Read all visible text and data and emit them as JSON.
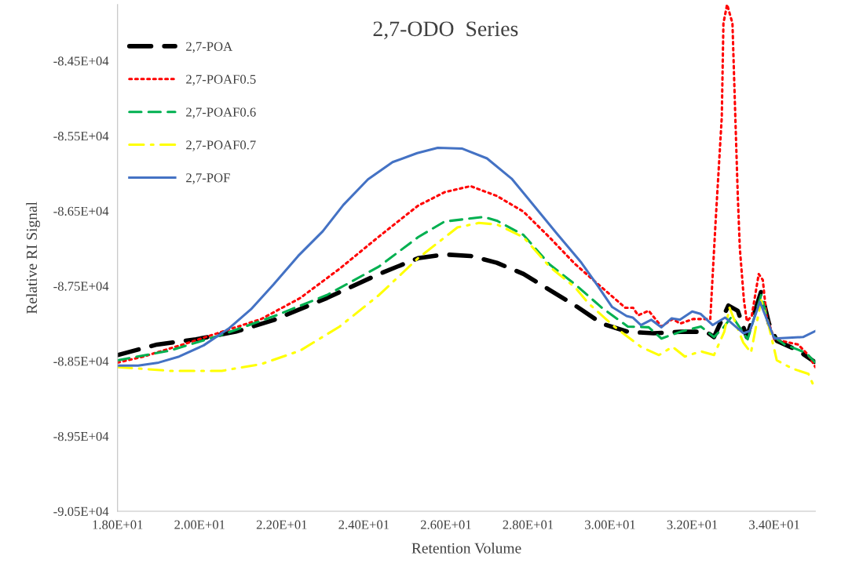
{
  "chart_data": {
    "type": "line",
    "title": "2,7-ODO  Series",
    "xlabel": "Retention Volume",
    "ylabel": "Relative RI Signal",
    "xlim": [
      18,
      35
    ],
    "ylim": [
      -90500,
      -83750
    ],
    "xticks": [
      {
        "value": 18,
        "label": "1.80E+01"
      },
      {
        "value": 20,
        "label": "2.00E+01"
      },
      {
        "value": 22,
        "label": "2.20E+01"
      },
      {
        "value": 24,
        "label": "2.40E+01"
      },
      {
        "value": 26,
        "label": "2.60E+01"
      },
      {
        "value": 28,
        "label": "2.80E+01"
      },
      {
        "value": 30,
        "label": "3.00E+01"
      },
      {
        "value": 32,
        "label": "3.20E+01"
      },
      {
        "value": 34,
        "label": "3.40E+01"
      }
    ],
    "yticks": [
      {
        "value": -84500,
        "label": "-8.45E+04"
      },
      {
        "value": -85500,
        "label": "-8.55E+04"
      },
      {
        "value": -86500,
        "label": "-8.65E+04"
      },
      {
        "value": -87500,
        "label": "-8.75E+04"
      },
      {
        "value": -88500,
        "label": "-8.85E+04"
      },
      {
        "value": -89500,
        "label": "-8.95E+04"
      },
      {
        "value": -90500,
        "label": "-9.05E+04"
      }
    ],
    "grid": false,
    "legend": "top left",
    "marker": "none",
    "series": [
      {
        "name": "2,7-POA",
        "color": "#000000",
        "line_style": "dashed",
        "x": [
          18.0,
          18.96,
          19.91,
          20.87,
          21.82,
          23.1,
          24.37,
          25.32,
          25.97,
          26.6,
          27.24,
          27.89,
          28.52,
          29.15,
          29.8,
          30.43,
          31.06,
          31.71,
          32.34,
          32.53,
          32.88,
          33.11,
          33.33,
          33.68,
          33.87,
          34.06,
          34.58,
          34.98
        ],
        "values": [
          -88420,
          -88280,
          -88210,
          -88110,
          -87950,
          -87660,
          -87340,
          -87130,
          -87080,
          -87100,
          -87190,
          -87340,
          -87550,
          -87760,
          -88000,
          -88110,
          -88130,
          -88110,
          -88110,
          -88180,
          -87760,
          -87830,
          -88180,
          -87570,
          -88000,
          -88230,
          -88360,
          -88510
        ]
      },
      {
        "name": "2,7-POAF0.5",
        "color": "#ff0000",
        "line_style": "dotted",
        "x": [
          18.0,
          18.63,
          19.59,
          20.54,
          21.5,
          22.45,
          23.41,
          24.37,
          25.32,
          25.97,
          26.6,
          27.24,
          27.89,
          28.52,
          29.15,
          29.8,
          30.37,
          30.56,
          30.68,
          30.94,
          31.25,
          31.52,
          31.71,
          32.02,
          32.44,
          32.57,
          32.72,
          32.76,
          32.85,
          32.98,
          33.05,
          33.11,
          33.16,
          33.26,
          33.33,
          33.45,
          33.62,
          33.72,
          33.81,
          34.0,
          34.58,
          34.83,
          35.0
        ],
        "values": [
          -88520,
          -88440,
          -88280,
          -88110,
          -87940,
          -87660,
          -87270,
          -86840,
          -86430,
          -86250,
          -86170,
          -86300,
          -86510,
          -86850,
          -87210,
          -87520,
          -87790,
          -87790,
          -87890,
          -87830,
          -88040,
          -87940,
          -88000,
          -87940,
          -87940,
          -86640,
          -85250,
          -84000,
          -83750,
          -84000,
          -85250,
          -86300,
          -87000,
          -87690,
          -87970,
          -87900,
          -87340,
          -87420,
          -87900,
          -88210,
          -88280,
          -88420,
          -88580
        ]
      },
      {
        "name": "2,7-POAF0.6",
        "color": "#00b050",
        "line_style": "dashed",
        "x": [
          18.0,
          19.28,
          20.54,
          21.82,
          23.1,
          24.37,
          25.32,
          25.97,
          26.93,
          27.24,
          27.89,
          28.52,
          29.15,
          29.8,
          30.43,
          30.94,
          31.25,
          31.71,
          32.21,
          32.53,
          32.78,
          32.97,
          33.35,
          33.68,
          33.93,
          34.25,
          34.77,
          34.98
        ],
        "values": [
          -88490,
          -88360,
          -88150,
          -87900,
          -87620,
          -87240,
          -86850,
          -86640,
          -86580,
          -86630,
          -86820,
          -87210,
          -87480,
          -87790,
          -88040,
          -88050,
          -88200,
          -88110,
          -88040,
          -88180,
          -88040,
          -87900,
          -88210,
          -87620,
          -88150,
          -88280,
          -88390,
          -88510
        ]
      },
      {
        "name": "2,7-POAF0.7",
        "color": "#ffff00",
        "line_style": "dashdot",
        "x": [
          18.0,
          19.28,
          20.54,
          21.5,
          22.45,
          23.41,
          24.37,
          25.32,
          26.28,
          26.8,
          27.24,
          27.89,
          28.52,
          29.15,
          29.47,
          30.1,
          30.75,
          31.19,
          31.52,
          31.82,
          32.21,
          32.53,
          32.78,
          32.91,
          33.24,
          33.43,
          33.68,
          33.87,
          34.06,
          34.44,
          34.83,
          35.0
        ],
        "values": [
          -88580,
          -88630,
          -88630,
          -88540,
          -88360,
          -88040,
          -87620,
          -87130,
          -86720,
          -86660,
          -86680,
          -86850,
          -87240,
          -87520,
          -87730,
          -88040,
          -88310,
          -88420,
          -88310,
          -88440,
          -88370,
          -88420,
          -88110,
          -87790,
          -88250,
          -88390,
          -87690,
          -88040,
          -88490,
          -88600,
          -88670,
          -88880
        ]
      },
      {
        "name": "2,7-POF",
        "color": "#4472c4",
        "line_style": "solid",
        "x": [
          18.0,
          18.5,
          19.0,
          19.5,
          20.1,
          20.7,
          21.25,
          21.8,
          22.4,
          23.0,
          23.5,
          24.1,
          24.7,
          25.3,
          25.8,
          26.4,
          27.0,
          27.6,
          28.1,
          28.7,
          29.3,
          29.7,
          30.05,
          30.4,
          30.55,
          30.75,
          31.0,
          31.25,
          31.5,
          31.7,
          32.0,
          32.2,
          32.5,
          32.8,
          33.25,
          33.4,
          33.65,
          34.0,
          34.7,
          35.0
        ],
        "values": [
          -88560,
          -88560,
          -88520,
          -88440,
          -88290,
          -88070,
          -87810,
          -87480,
          -87100,
          -86770,
          -86420,
          -86080,
          -85850,
          -85730,
          -85660,
          -85670,
          -85800,
          -86070,
          -86400,
          -86800,
          -87190,
          -87500,
          -87780,
          -87900,
          -87920,
          -88020,
          -87950,
          -88050,
          -87930,
          -87950,
          -87840,
          -87870,
          -88020,
          -87920,
          -88130,
          -88100,
          -87710,
          -88200,
          -88180,
          -88100
        ]
      }
    ]
  }
}
